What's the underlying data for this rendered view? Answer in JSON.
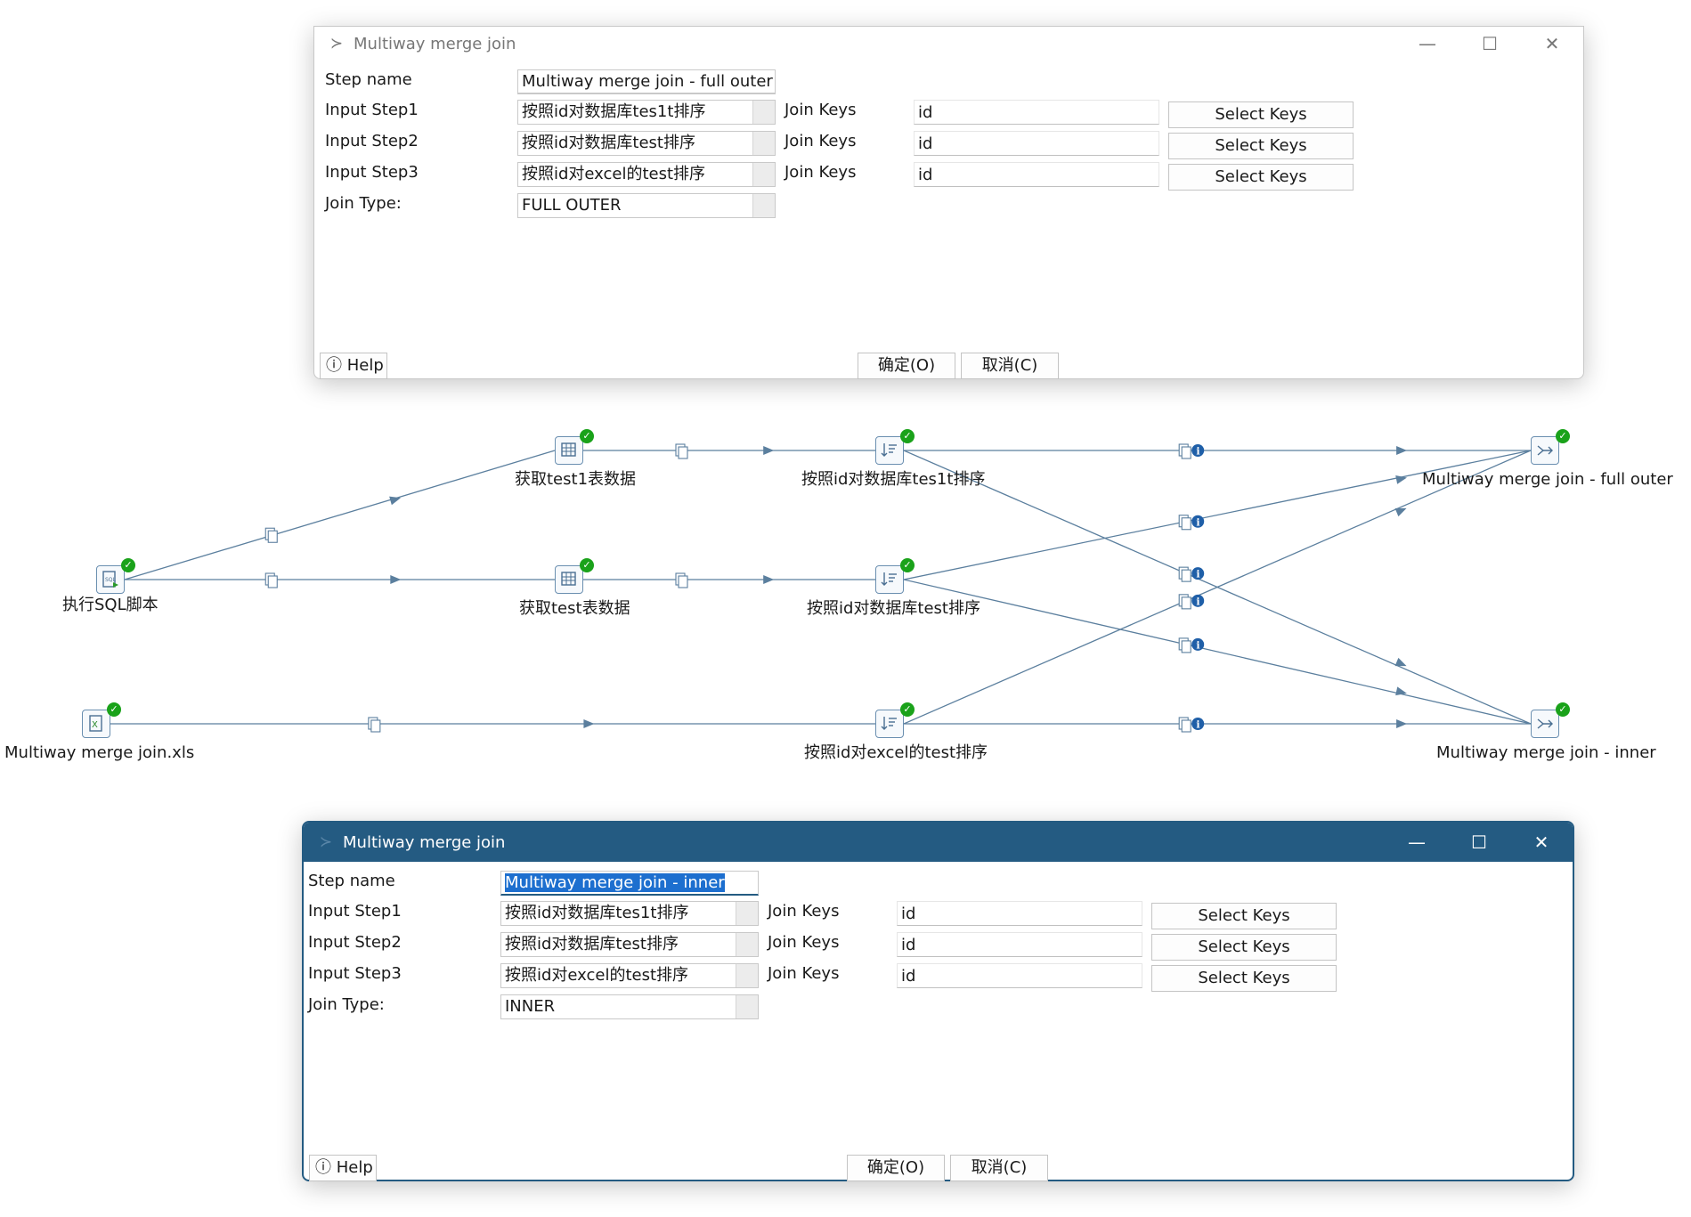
{
  "top_dialog": {
    "title": "Multiway merge join",
    "step_name_label": "Step name",
    "step_name_value": "Multiway merge join - full outer",
    "input_steps": [
      {
        "label": "Input Step1",
        "value": "按照id对数据库tes1t排序",
        "join_keys_label": "Join Keys",
        "key": "id",
        "button": "Select Keys"
      },
      {
        "label": "Input Step2",
        "value": "按照id对数据库test排序",
        "join_keys_label": "Join Keys",
        "key": "id",
        "button": "Select Keys"
      },
      {
        "label": "Input Step3",
        "value": "按照id对excel的test排序",
        "join_keys_label": "Join Keys",
        "key": "id",
        "button": "Select Keys"
      }
    ],
    "join_type_label": "Join Type:",
    "join_type_value": "FULL OUTER",
    "help": "Help",
    "ok": "确定(O)",
    "cancel": "取消(C)"
  },
  "bottom_dialog": {
    "title": "Multiway merge join",
    "step_name_label": "Step name",
    "step_name_value": "Multiway merge join - inner",
    "input_steps": [
      {
        "label": "Input Step1",
        "value": "按照id对数据库tes1t排序",
        "join_keys_label": "Join Keys",
        "key": "id",
        "button": "Select Keys"
      },
      {
        "label": "Input Step2",
        "value": "按照id对数据库test排序",
        "join_keys_label": "Join Keys",
        "key": "id",
        "button": "Select Keys"
      },
      {
        "label": "Input Step3",
        "value": "按照id对excel的test排序",
        "join_keys_label": "Join Keys",
        "key": "id",
        "button": "Select Keys"
      }
    ],
    "join_type_label": "Join Type:",
    "join_type_value": "INNER",
    "help": "Help",
    "ok": "确定(O)",
    "cancel": "取消(C)"
  },
  "canvas": {
    "nodes": {
      "exec_sql": "执行SQL脚本",
      "get_test1": "获取test1表数据",
      "get_test": "获取test表数据",
      "xls": "Multiway merge join.xls",
      "sort_tes1t": "按照id对数据库tes1t排序",
      "sort_test": "按照id对数据库test排序",
      "sort_excel": "按照id对excel的test排序",
      "join_full_outer": "Multiway merge join - full outer",
      "join_inner": "Multiway merge join - inner"
    },
    "icons": {
      "sql": "sql-script-icon",
      "table_input": "table-input-icon",
      "excel_input": "excel-input-icon",
      "sort": "sort-rows-icon",
      "merge_join": "merge-join-icon",
      "status": "success-check-icon",
      "hop_copy": "copy-rows-icon",
      "hop_info": "info-icon"
    },
    "hop_color": "#5b7f9e",
    "check_color": "#1aa21a",
    "info_color": "#1f5fa8"
  },
  "colors": {
    "active_title_bar": "#245b82",
    "selection": "#1d6fcf"
  }
}
